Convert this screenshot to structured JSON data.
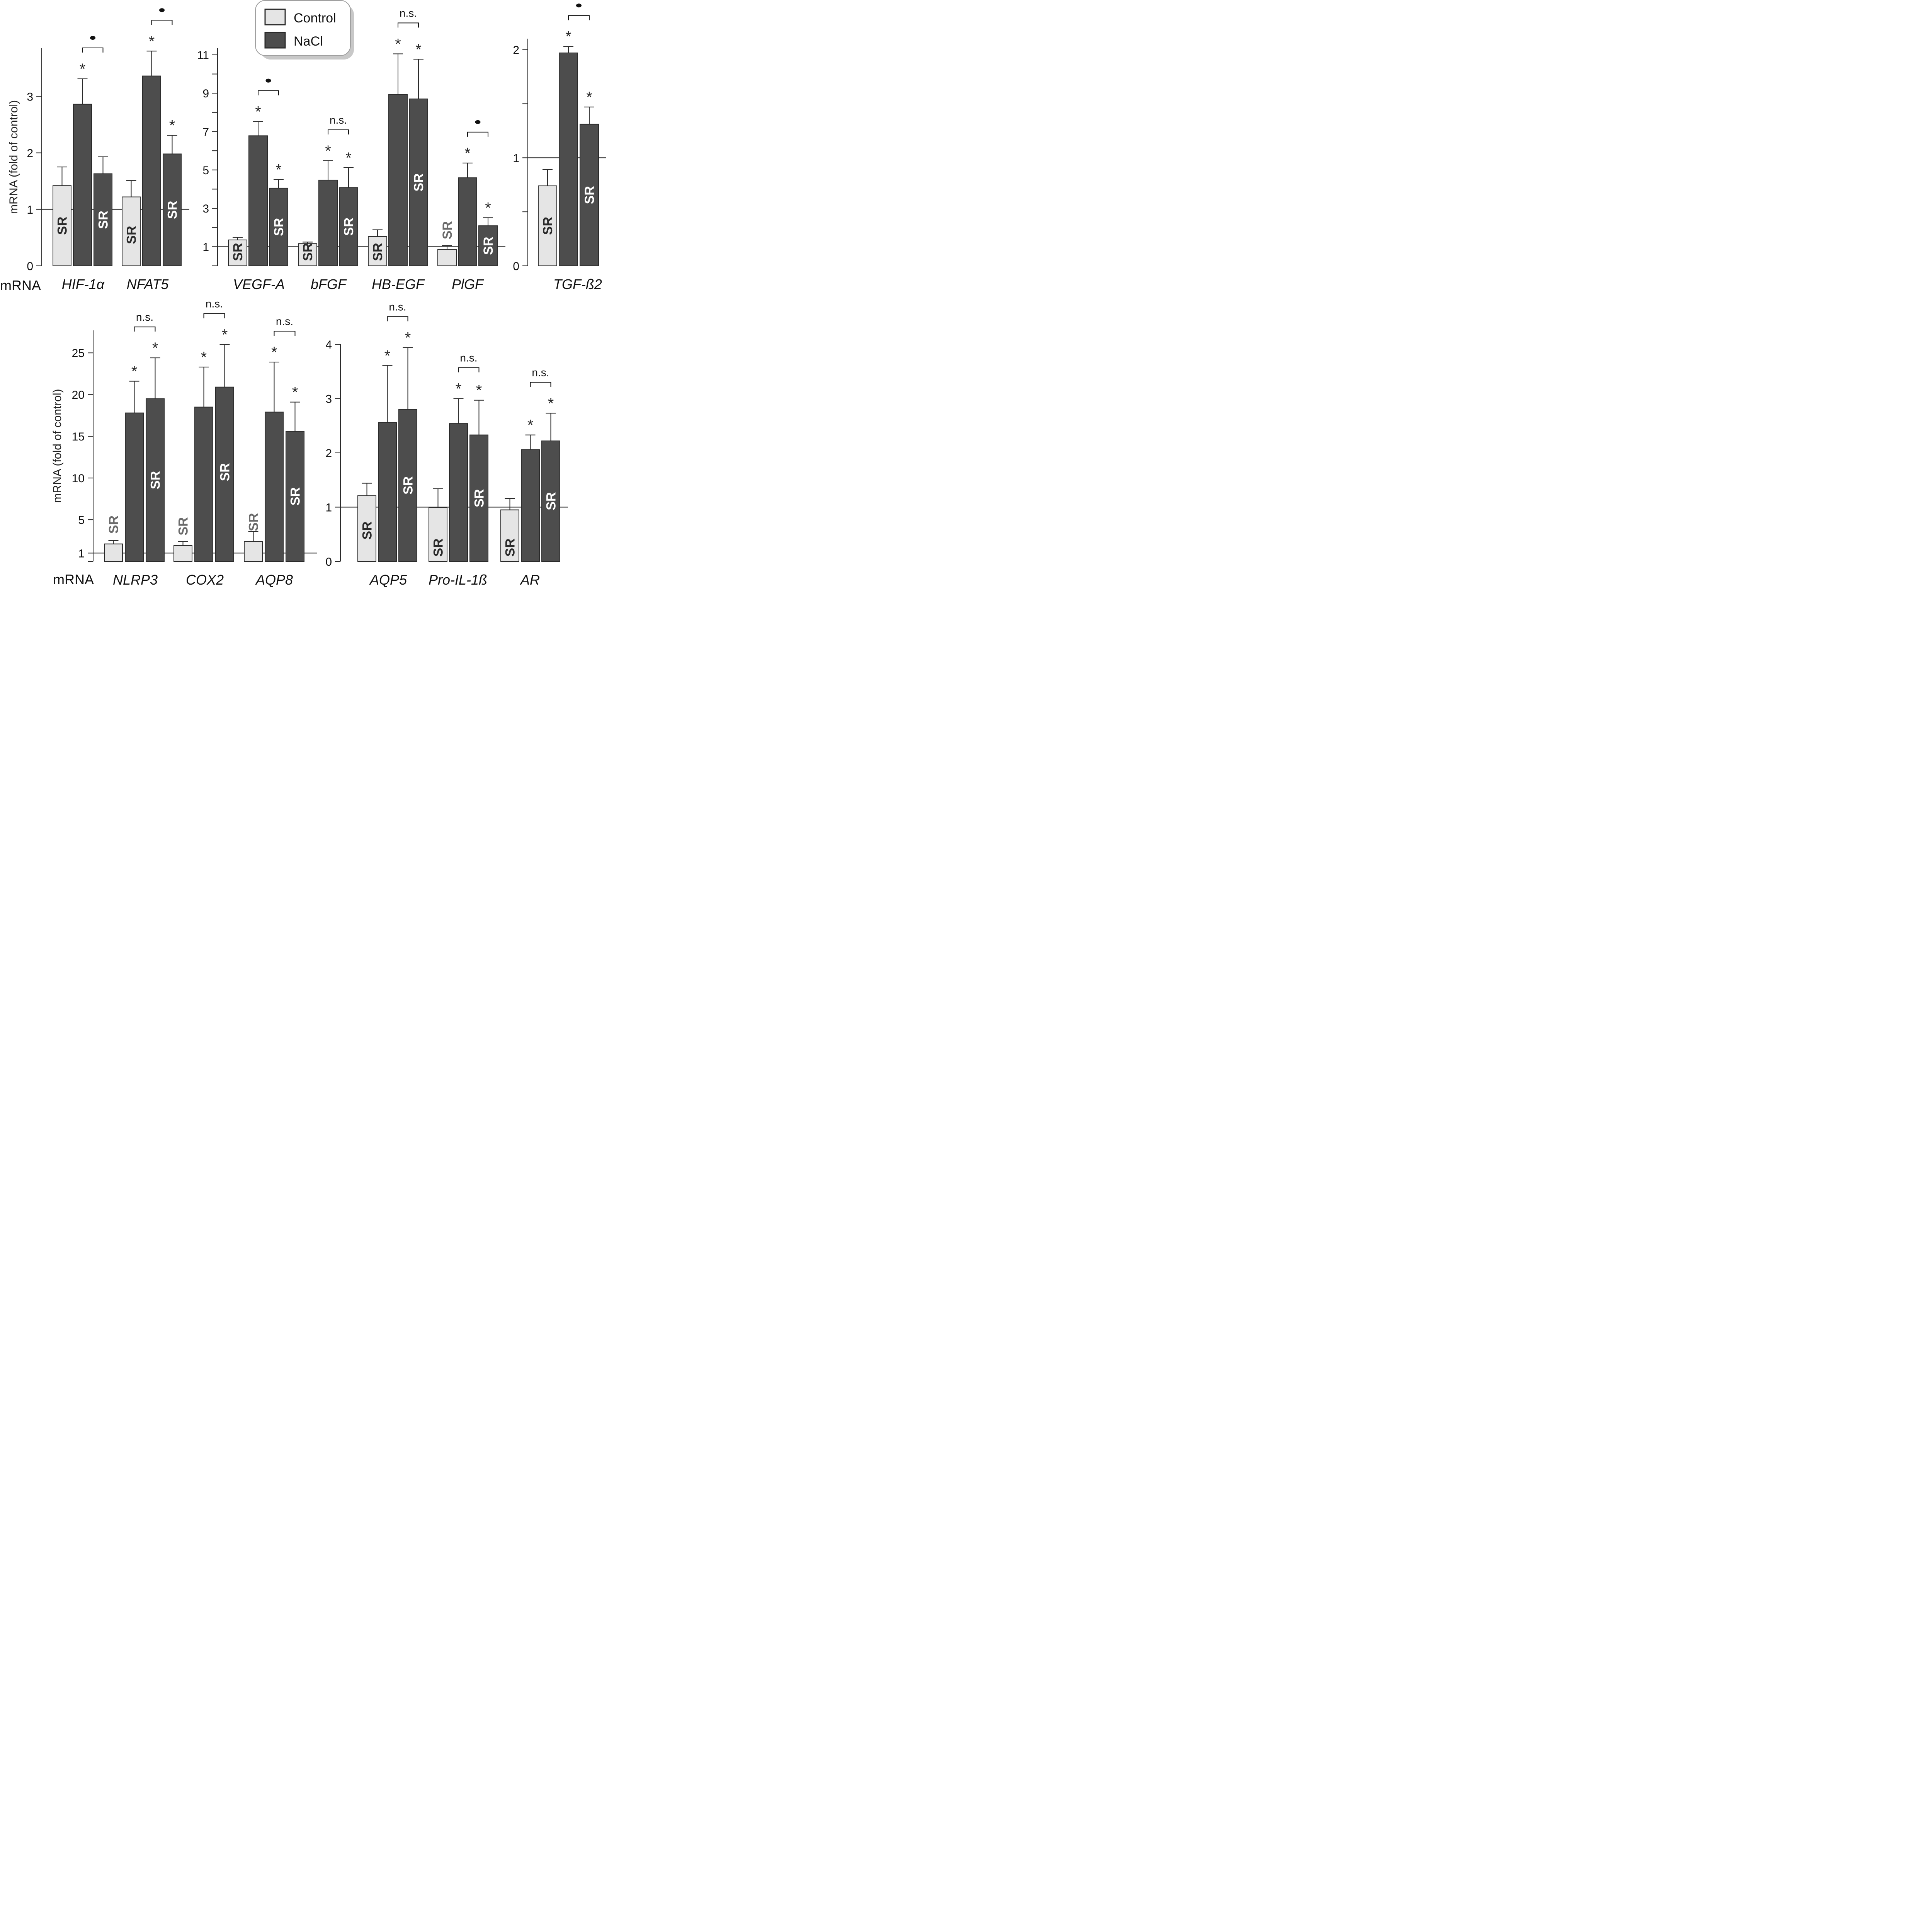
{
  "colors": {
    "control": "#e5e5e5",
    "nacl": "#4d4d4d",
    "border": "#2a2a2a",
    "sr_on_light": "#2a2a2a",
    "sr_on_dark": "#ffffff",
    "sr_gray": "#6b6b6b"
  },
  "legend": {
    "items": [
      {
        "label": "Control",
        "key": "control"
      },
      {
        "label": "NaCl",
        "key": "nacl"
      }
    ],
    "position": "top-center"
  },
  "chart_data": [
    {
      "id": "panel-a",
      "type": "bar",
      "ylabel": "mRNA (fold of control)",
      "xlabel_prefix": "mRNA",
      "ylim": [
        0,
        3.85
      ],
      "yticks": [
        0,
        1,
        2,
        3
      ],
      "minor_ticks": [],
      "reference_line": 1,
      "groups": [
        {
          "gene": "HIF-1α",
          "bars": [
            {
              "series": "Control",
              "value": 1.42,
              "error": 0.33,
              "sr": "inside",
              "star": false
            },
            {
              "series": "NaCl",
              "value": 2.86,
              "error": 0.45,
              "sr": null,
              "star": true
            },
            {
              "series": "NaCl",
              "value": 1.63,
              "error": 0.3,
              "sr": "inside",
              "star": false
            }
          ],
          "comparison": {
            "label": "•",
            "between": [
              1,
              2
            ]
          }
        },
        {
          "gene": "NFAT5",
          "bars": [
            {
              "series": "Control",
              "value": 1.22,
              "error": 0.29,
              "sr": "inside",
              "star": false
            },
            {
              "series": "NaCl",
              "value": 3.36,
              "error": 0.44,
              "sr": null,
              "star": true
            },
            {
              "series": "NaCl",
              "value": 1.98,
              "error": 0.33,
              "sr": "inside",
              "star": true
            }
          ],
          "comparison": {
            "label": "•",
            "between": [
              1,
              2
            ]
          }
        }
      ]
    },
    {
      "id": "panel-b",
      "type": "bar",
      "ylabel": "",
      "xlabel_prefix": "",
      "ylim": [
        0,
        11.3
      ],
      "yticks": [
        1,
        3,
        5,
        7,
        9,
        11
      ],
      "minor_ticks": [
        0,
        2,
        4,
        6,
        8,
        10
      ],
      "reference_line": 1,
      "groups": [
        {
          "gene": "VEGF-A",
          "bars": [
            {
              "series": "Control",
              "value": 1.35,
              "error": 0.13,
              "sr": "inside",
              "star": false
            },
            {
              "series": "NaCl",
              "value": 6.78,
              "error": 0.74,
              "sr": null,
              "star": true
            },
            {
              "series": "NaCl",
              "value": 4.05,
              "error": 0.45,
              "sr": "inside",
              "star": true
            }
          ],
          "comparison": {
            "label": "•",
            "between": [
              1,
              2
            ]
          }
        },
        {
          "gene": "bFGF",
          "bars": [
            {
              "series": "Control",
              "value": 1.16,
              "error": 0.08,
              "sr": "inside",
              "star": false
            },
            {
              "series": "NaCl",
              "value": 4.47,
              "error": 1.01,
              "sr": null,
              "star": true
            },
            {
              "series": "NaCl",
              "value": 4.08,
              "error": 1.04,
              "sr": "inside",
              "star": true
            }
          ],
          "comparison": {
            "label": "n.s.",
            "between": [
              1,
              2
            ]
          }
        },
        {
          "gene": "HB-EGF",
          "bars": [
            {
              "series": "Control",
              "value": 1.53,
              "error": 0.35,
              "sr": "inside",
              "star": false
            },
            {
              "series": "NaCl",
              "value": 8.94,
              "error": 2.11,
              "sr": null,
              "star": true
            },
            {
              "series": "NaCl",
              "value": 8.7,
              "error": 2.07,
              "sr": "inside",
              "star": true
            }
          ],
          "comparison": {
            "label": "n.s.",
            "between": [
              1,
              2
            ]
          }
        },
        {
          "gene": "PlGF",
          "bars": [
            {
              "series": "Control",
              "value": 0.85,
              "error": 0.21,
              "sr": "above",
              "star": false
            },
            {
              "series": "NaCl",
              "value": 4.59,
              "error": 0.77,
              "sr": null,
              "star": true
            },
            {
              "series": "NaCl",
              "value": 2.09,
              "error": 0.42,
              "sr": "inside",
              "star": true
            }
          ],
          "comparison": {
            "label": "•",
            "between": [
              1,
              2
            ]
          }
        }
      ]
    },
    {
      "id": "panel-c",
      "type": "bar",
      "ylabel": "",
      "xlabel_prefix": "",
      "ylim": [
        0,
        2.07
      ],
      "yticks": [
        0,
        1,
        2
      ],
      "minor_ticks": [
        0.5,
        1.5
      ],
      "reference_line": 1,
      "groups": [
        {
          "gene": "TGF-ß2",
          "bars": [
            {
              "series": "Control",
              "value": 0.74,
              "error": 0.15,
              "sr": "inside",
              "star": false
            },
            {
              "series": "NaCl",
              "value": 1.97,
              "error": 0.06,
              "sr": null,
              "star": true
            },
            {
              "series": "NaCl",
              "value": 1.31,
              "error": 0.16,
              "sr": "inside",
              "star": true
            }
          ],
          "comparison": {
            "label": "•",
            "between": [
              1,
              2
            ]
          }
        }
      ]
    },
    {
      "id": "panel-d",
      "type": "bar",
      "ylabel": "mRNA (fold of control)",
      "xlabel_prefix": "mRNA",
      "ylim": [
        0,
        26.4
      ],
      "yticks": [
        1,
        5,
        10,
        15,
        20,
        25
      ],
      "minor_ticks": [
        0
      ],
      "reference_line": 1,
      "groups": [
        {
          "gene": "NLRP3",
          "bars": [
            {
              "series": "Control",
              "value": 2.1,
              "error": 0.4,
              "sr": "above",
              "star": false
            },
            {
              "series": "NaCl",
              "value": 17.8,
              "error": 3.8,
              "sr": null,
              "star": true
            },
            {
              "series": "NaCl",
              "value": 19.5,
              "error": 4.9,
              "sr": "inside",
              "star": true
            }
          ],
          "comparison": {
            "label": "n.s.",
            "between": [
              1,
              2
            ]
          }
        },
        {
          "gene": "COX2",
          "bars": [
            {
              "series": "Control",
              "value": 1.9,
              "error": 0.5,
              "sr": "above",
              "star": false
            },
            {
              "series": "NaCl",
              "value": 18.5,
              "error": 4.8,
              "sr": null,
              "star": true
            },
            {
              "series": "NaCl",
              "value": 20.9,
              "error": 5.1,
              "sr": "inside",
              "star": true
            }
          ],
          "comparison": {
            "label": "n.s.",
            "between": [
              1,
              2
            ]
          }
        },
        {
          "gene": "AQP8",
          "bars": [
            {
              "series": "Control",
              "value": 2.4,
              "error": 1.2,
              "sr": "above",
              "star": false
            },
            {
              "series": "NaCl",
              "value": 17.9,
              "error": 6.0,
              "sr": null,
              "star": true
            },
            {
              "series": "NaCl",
              "value": 15.6,
              "error": 3.5,
              "sr": "inside",
              "star": true
            }
          ],
          "comparison": {
            "label": "n.s.",
            "between": [
              1,
              2
            ]
          }
        }
      ]
    },
    {
      "id": "panel-e",
      "type": "bar",
      "ylabel": "",
      "xlabel_prefix": "",
      "ylim": [
        0,
        4.0
      ],
      "yticks": [
        0,
        1,
        2,
        3,
        4
      ],
      "minor_ticks": [],
      "reference_line": 1,
      "groups": [
        {
          "gene": "AQP5",
          "bars": [
            {
              "series": "Control",
              "value": 1.21,
              "error": 0.23,
              "sr": "inside",
              "star": false
            },
            {
              "series": "NaCl",
              "value": 2.56,
              "error": 1.05,
              "sr": null,
              "star": true
            },
            {
              "series": "NaCl",
              "value": 2.8,
              "error": 1.14,
              "sr": "inside",
              "star": true
            }
          ],
          "comparison": {
            "label": "n.s.",
            "between": [
              1,
              2
            ]
          }
        },
        {
          "gene": "Pro-IL-1ß",
          "bars": [
            {
              "series": "Control",
              "value": 0.99,
              "error": 0.35,
              "sr": "inside",
              "star": false
            },
            {
              "series": "NaCl",
              "value": 2.54,
              "error": 0.46,
              "sr": null,
              "star": true
            },
            {
              "series": "NaCl",
              "value": 2.33,
              "error": 0.64,
              "sr": "inside",
              "star": true
            }
          ],
          "comparison": {
            "label": "n.s.",
            "between": [
              1,
              2
            ]
          }
        },
        {
          "gene": "AR",
          "bars": [
            {
              "series": "Control",
              "value": 0.95,
              "error": 0.21,
              "sr": "inside",
              "star": false
            },
            {
              "series": "NaCl",
              "value": 2.06,
              "error": 0.27,
              "sr": null,
              "star": true
            },
            {
              "series": "NaCl",
              "value": 2.22,
              "error": 0.51,
              "sr": "inside",
              "star": true
            }
          ],
          "comparison": {
            "label": "n.s.",
            "between": [
              1,
              2
            ]
          }
        }
      ]
    }
  ],
  "labels": {
    "sr_text": "SR",
    "star_text": "*"
  }
}
